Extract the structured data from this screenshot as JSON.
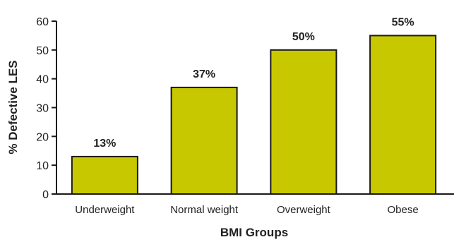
{
  "chart_data": {
    "type": "bar",
    "categories": [
      "Underweight",
      "Normal weight",
      "Overweight",
      "Obese"
    ],
    "values": [
      13,
      37,
      50,
      55
    ],
    "data_labels": [
      "13%",
      "37%",
      "50%",
      "55%"
    ],
    "title": "",
    "xlabel": "BMI Groups",
    "ylabel": "% Defective LES",
    "ylim": [
      0,
      60
    ],
    "yticks": [
      0,
      10,
      20,
      30,
      40,
      50,
      60
    ],
    "grid": false,
    "bar_color": "#c8c800",
    "bar_edge_color": "#1a1a1a"
  }
}
